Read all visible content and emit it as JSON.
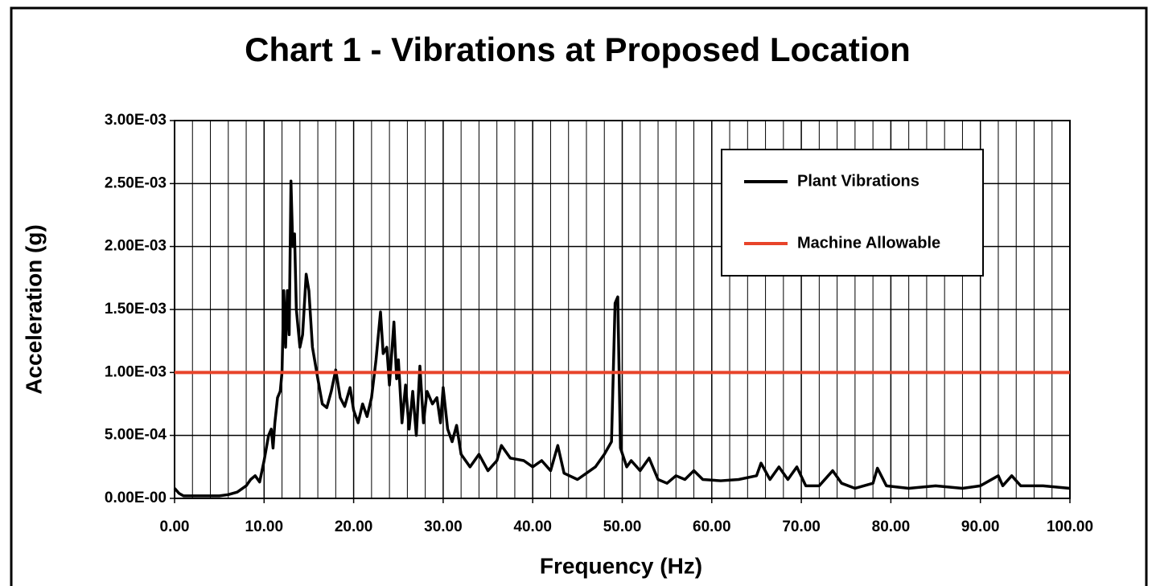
{
  "chart_data": {
    "type": "line",
    "title": "Chart 1 - Vibrations at Proposed Location",
    "xlabel": "Frequency (Hz)",
    "ylabel": "Acceleration (g)",
    "xlim": [
      0,
      100
    ],
    "ylim": [
      0,
      0.003
    ],
    "xticks": [
      {
        "value": 0,
        "label": "0.00"
      },
      {
        "value": 10,
        "label": "10.00"
      },
      {
        "value": 20,
        "label": "20.00"
      },
      {
        "value": 30,
        "label": "30.00"
      },
      {
        "value": 40,
        "label": "40.00"
      },
      {
        "value": 50,
        "label": "50.00"
      },
      {
        "value": 60,
        "label": "60.00"
      },
      {
        "value": 70,
        "label": "70.00"
      },
      {
        "value": 80,
        "label": "80.00"
      },
      {
        "value": 90,
        "label": "90.00"
      },
      {
        "value": 100,
        "label": "100.00"
      }
    ],
    "xminorticks": [
      2,
      4,
      6,
      8,
      12,
      14,
      16,
      18,
      22,
      24,
      26,
      28,
      32,
      34,
      36,
      38,
      42,
      44,
      46,
      48,
      52,
      54,
      56,
      58,
      62,
      64,
      66,
      68,
      72,
      74,
      76,
      78,
      82,
      84,
      86,
      88,
      92,
      94,
      96,
      98
    ],
    "yticks": [
      {
        "value": 0,
        "label": "0.00E-00"
      },
      {
        "value": 0.0005,
        "label": "5.00E-04"
      },
      {
        "value": 0.001,
        "label": "1.00E-03"
      },
      {
        "value": 0.0015,
        "label": "1.50E-03"
      },
      {
        "value": 0.002,
        "label": "2.00E-03"
      },
      {
        "value": 0.0025,
        "label": "2.50E-03"
      },
      {
        "value": 0.003,
        "label": "3.00E-03"
      }
    ],
    "grid": true,
    "legend": "upper right",
    "series": [
      {
        "name": "Plant Vibrations",
        "color": "#000000",
        "x": [
          0,
          0.5,
          1,
          3,
          5,
          6,
          7,
          8,
          8.5,
          9,
          9.5,
          10,
          10.5,
          10.8,
          11,
          11.2,
          11.5,
          11.8,
          12,
          12.2,
          12.4,
          12.6,
          12.8,
          13,
          13.2,
          13.4,
          13.6,
          14,
          14.3,
          14.7,
          15,
          15.4,
          16,
          16.5,
          17,
          17.5,
          18,
          18.5,
          19,
          19.6,
          20,
          20.5,
          21,
          21.5,
          22,
          22.5,
          23,
          23.3,
          23.7,
          24,
          24.5,
          24.8,
          25,
          25.4,
          25.8,
          26.2,
          26.6,
          27,
          27.4,
          27.8,
          28.2,
          28.8,
          29.3,
          29.7,
          30,
          30.5,
          31,
          31.5,
          32,
          33,
          34,
          35,
          36,
          36.5,
          37.5,
          39,
          40,
          41,
          42,
          42.8,
          43.5,
          45,
          46,
          47,
          48,
          48.8,
          49.2,
          49.5,
          49.8,
          50.5,
          51,
          52,
          53,
          54,
          55,
          56,
          57,
          58,
          59,
          61,
          63,
          65,
          65.5,
          66.5,
          67.5,
          68.5,
          69.5,
          70.5,
          72,
          73.5,
          74.5,
          76,
          78,
          78.5,
          79.5,
          82,
          85,
          88,
          90,
          92,
          92.5,
          93.5,
          94.5,
          97,
          100
        ],
        "values": [
          8e-05,
          4e-05,
          2e-05,
          2e-05,
          2e-05,
          3e-05,
          5e-05,
          0.0001,
          0.00015,
          0.00018,
          0.00013,
          0.0003,
          0.0005,
          0.00055,
          0.0004,
          0.0006,
          0.0008,
          0.00085,
          0.001,
          0.00165,
          0.0012,
          0.00165,
          0.0013,
          0.00252,
          0.002,
          0.0021,
          0.0015,
          0.0012,
          0.0013,
          0.00178,
          0.00165,
          0.0012,
          0.00095,
          0.00075,
          0.00072,
          0.00085,
          0.00102,
          0.0008,
          0.00073,
          0.00088,
          0.0007,
          0.0006,
          0.00075,
          0.00065,
          0.0008,
          0.0011,
          0.00148,
          0.00115,
          0.0012,
          0.0009,
          0.0014,
          0.00095,
          0.0011,
          0.0006,
          0.0009,
          0.00055,
          0.00085,
          0.0005,
          0.00105,
          0.0006,
          0.00085,
          0.00075,
          0.0008,
          0.0006,
          0.00088,
          0.00055,
          0.00045,
          0.00058,
          0.00035,
          0.00025,
          0.00035,
          0.00022,
          0.0003,
          0.00042,
          0.00032,
          0.0003,
          0.00025,
          0.0003,
          0.00022,
          0.00042,
          0.0002,
          0.00015,
          0.0002,
          0.00025,
          0.00035,
          0.00045,
          0.00155,
          0.0016,
          0.0004,
          0.00025,
          0.0003,
          0.00022,
          0.00032,
          0.00015,
          0.00012,
          0.00018,
          0.00015,
          0.00022,
          0.00015,
          0.00014,
          0.00015,
          0.00018,
          0.00028,
          0.00015,
          0.00025,
          0.00015,
          0.00025,
          0.0001,
          0.0001,
          0.00022,
          0.00012,
          8e-05,
          0.00012,
          0.00024,
          0.0001,
          8e-05,
          0.0001,
          8e-05,
          0.0001,
          0.00018,
          0.0001,
          0.00018,
          0.0001,
          0.0001,
          8e-05
        ]
      },
      {
        "name": "Machine Allowable",
        "color": "#e8442a",
        "x": [
          0,
          100
        ],
        "values": [
          0.001,
          0.001
        ]
      }
    ]
  }
}
